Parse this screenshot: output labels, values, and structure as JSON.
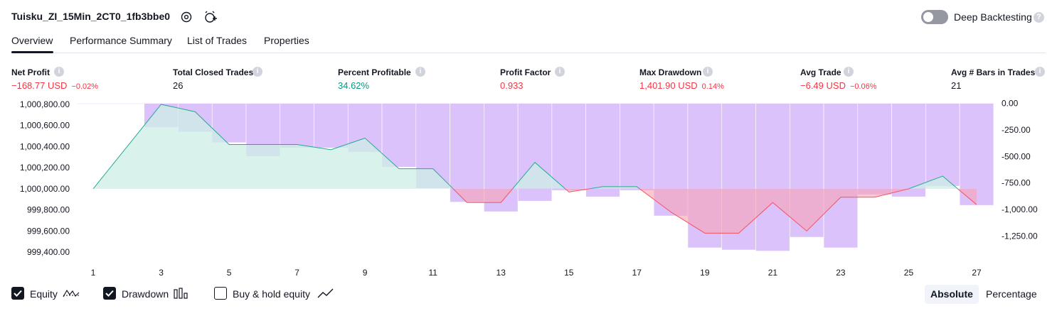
{
  "header": {
    "strategy_name": "Tuisku_ZI_15Min_2CT0_1fb3bbe0",
    "deep_backtesting_label": "Deep Backtesting",
    "deep_backtesting_enabled": false
  },
  "tabs": [
    {
      "label": "Overview",
      "active": true
    },
    {
      "label": "Performance Summary",
      "active": false
    },
    {
      "label": "List of Trades",
      "active": false
    },
    {
      "label": "Properties",
      "active": false
    }
  ],
  "metrics": [
    {
      "label": "Net Profit",
      "value": "−168.77 USD",
      "pct": "−0.02%",
      "tone": "neg"
    },
    {
      "label": "Total Closed Trades",
      "value": "26",
      "pct": "",
      "tone": "neu"
    },
    {
      "label": "Percent Profitable",
      "value": "34.62%",
      "pct": "",
      "tone": "pos"
    },
    {
      "label": "Profit Factor",
      "value": "0.933",
      "pct": "",
      "tone": "neg"
    },
    {
      "label": "Max Drawdown",
      "value": "1,401.90 USD",
      "pct": "0.14%",
      "tone": "neg"
    },
    {
      "label": "Avg Trade",
      "value": "−6.49 USD",
      "pct": "−0.06%",
      "tone": "neg"
    },
    {
      "label": "Avg # Bars in Trades",
      "value": "21",
      "pct": "",
      "tone": "neu"
    }
  ],
  "legend": {
    "equity": {
      "label": "Equity",
      "checked": true
    },
    "drawdown": {
      "label": "Drawdown",
      "checked": true
    },
    "buy_hold": {
      "label": "Buy & hold equity",
      "checked": false
    }
  },
  "mode_toggle": {
    "absolute": "Absolute",
    "percentage": "Percentage",
    "selected": "Absolute"
  },
  "colors": {
    "equity_up_line": "#22ab94",
    "equity_down_line": "#f7525f",
    "equity_up_fill": "#cdeee6",
    "equity_down_fill": "#f7a1b5",
    "drawdown_bar": "#c08ff5",
    "text": "#131722"
  },
  "chart_data": {
    "type": "line",
    "x": [
      1,
      2,
      3,
      4,
      5,
      6,
      7,
      8,
      9,
      10,
      11,
      12,
      13,
      14,
      15,
      16,
      17,
      18,
      19,
      20,
      21,
      22,
      23,
      24,
      25,
      26,
      27
    ],
    "x_tick_labels": [
      "1",
      "3",
      "5",
      "7",
      "9",
      "11",
      "13",
      "15",
      "17",
      "19",
      "21",
      "23",
      "25",
      "27"
    ],
    "left_axis": {
      "ticks": [
        "1,000,800.00",
        "1,000,600.00",
        "1,000,400.00",
        "1,000,200.00",
        "1,000,000.00",
        "999,800.00",
        "999,600.00",
        "999,400.00"
      ],
      "range": [
        999340,
        1000820
      ]
    },
    "right_axis": {
      "ticks": [
        "0.00",
        "-250.00",
        "-500.00",
        "-750.00",
        "-1,000.00",
        "-1,250.00"
      ],
      "range": [
        -1460,
        10
      ]
    },
    "baseline": 1000000,
    "series": [
      {
        "values": [
          1000000,
          1000400,
          1000800,
          1000730,
          1000420,
          1000420,
          1000420,
          1000370,
          1000480,
          1000190,
          1000190,
          999870,
          999870,
          1000250,
          999970,
          1000020,
          1000020,
          999780,
          999580,
          999580,
          999870,
          999600,
          999920,
          999920,
          1000000,
          1000120,
          999850
        ]
      },
      {
        "values": [
          0,
          -5,
          -225,
          -270,
          -370,
          -500,
          -420,
          -420,
          -460,
          -600,
          -800,
          -930,
          -1020,
          -920,
          -820,
          -880,
          -820,
          -1060,
          -1360,
          -1380,
          -1390,
          -1260,
          -1360,
          -860,
          -880,
          -780,
          -960
        ]
      }
    ]
  }
}
